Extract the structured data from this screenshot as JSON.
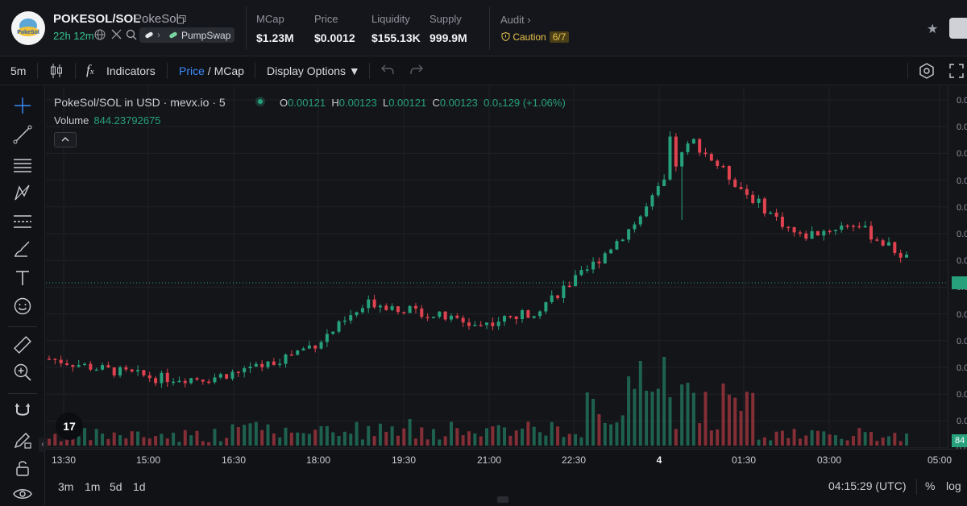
{
  "header": {
    "token_symbol": "POKESOL/SOL",
    "token_name": "PokeSol",
    "logo_text": "PokeSol",
    "age": "22h 12m",
    "dex": "PumpSwap",
    "stats": [
      {
        "label": "MCap",
        "value": "$1.23M"
      },
      {
        "label": "Price",
        "value": "$0.0012"
      },
      {
        "label": "Liquidity",
        "value": "$155.13K"
      },
      {
        "label": "Supply",
        "value": "999.9M"
      }
    ],
    "audit_label": "Audit",
    "audit_status": "Caution",
    "audit_score": "6/7"
  },
  "toolbar": {
    "interval": "5m",
    "indicators_label": "Indicators",
    "price_label": "Price",
    "mcap_label": "/ MCap",
    "display_options_label": "Display Options ▼"
  },
  "legend": {
    "title": "PokeSol/SOL in USD · mevx.io · 5",
    "open_key": "O",
    "open": "0.00121",
    "high_key": "H",
    "high": "0.00123",
    "low_key": "L",
    "low": "0.00121",
    "close_key": "C",
    "close": "0.00123",
    "change": "0.0₅129 (+1.06%)",
    "volume_label": "Volume",
    "volume_value": "844.23792675"
  },
  "price_axis": {
    "labels": [
      "0.0",
      "0.0",
      "0.0",
      "0.0",
      "0.0",
      "0.0",
      "0.0",
      "0.0",
      "0.0",
      "0.0",
      "0.0",
      "0.0",
      "0.0",
      "0.0"
    ],
    "current_volume_label": "84"
  },
  "time_axis": {
    "labels": [
      "13:30",
      "15:00",
      "16:30",
      "18:00",
      "19:30",
      "21:00",
      "22:30",
      "4",
      "01:30",
      "03:00",
      "05:00"
    ]
  },
  "bottom": {
    "ranges": [
      "3m",
      "1m",
      "5d",
      "1d"
    ],
    "clock": "04:15:29 (UTC)",
    "percent_label": "%",
    "log_label": "log"
  },
  "colors": {
    "up": "#26a17b",
    "down": "#e0434f",
    "accent": "#3d8bfd",
    "caution": "#e8c34a"
  },
  "chart_data": {
    "type": "candlestick",
    "title": "PokeSol/SOL in USD · mevx.io · 5",
    "x_labels": [
      "13:30",
      "15:00",
      "16:30",
      "18:00",
      "19:30",
      "21:00",
      "22:30",
      "4",
      "01:30",
      "03:00",
      "05:00"
    ],
    "approx_close_path_usd": [
      0.00066,
      0.0006,
      0.00055,
      0.00055,
      0.00062,
      0.00075,
      0.00098,
      0.00092,
      0.00085,
      0.00092,
      0.00115,
      0.00145,
      0.0019,
      0.0016,
      0.00135,
      0.00143,
      0.00123
    ],
    "last_ohlc": {
      "open": 0.00121,
      "high": 0.00123,
      "low": 0.00121,
      "close": 0.00123
    },
    "volume_last": 844.23792675,
    "grid": true
  }
}
